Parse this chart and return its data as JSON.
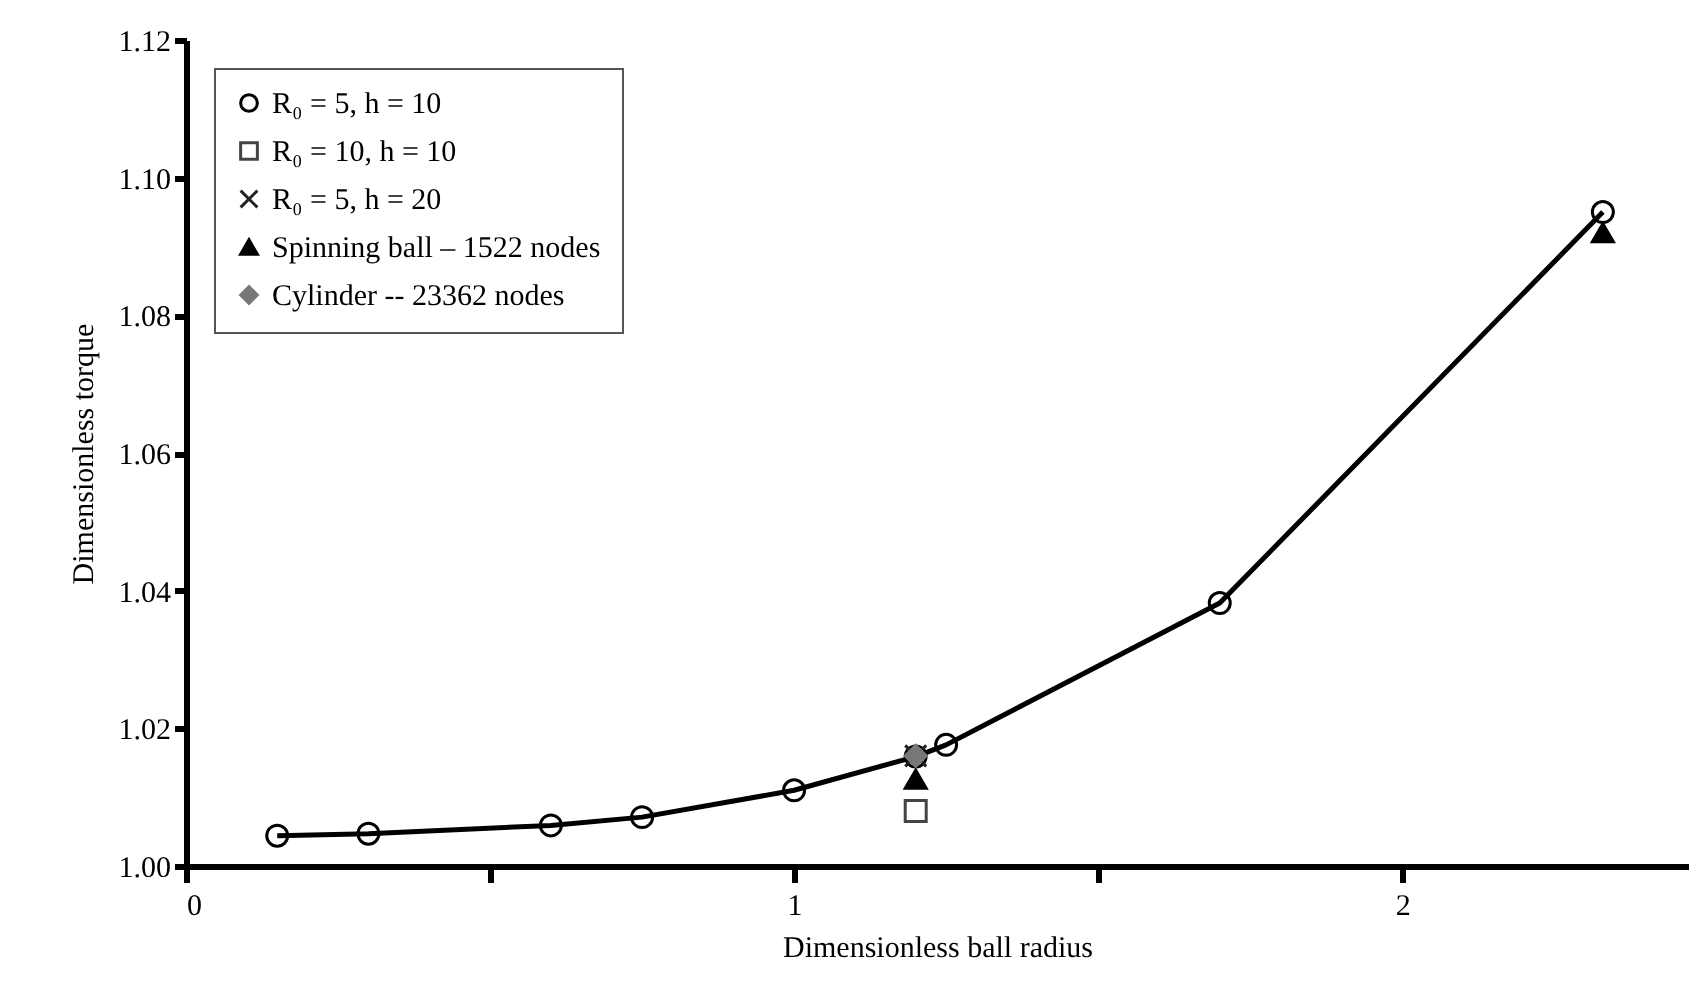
{
  "chart_data": {
    "type": "line",
    "xlabel": "Dimensionless ball radius",
    "ylabel": "Dimensionless torque",
    "xlim": [
      0,
      2.47
    ],
    "xticks": [
      0,
      {
        "value": 0.5,
        "label": null
      },
      1,
      {
        "value": 1.5,
        "label": null
      },
      2
    ],
    "ylim": [
      1.0,
      1.12
    ],
    "yticks": [
      {
        "value": 1.0,
        "label": "1.00"
      },
      {
        "value": 1.02,
        "label": "1.02"
      },
      {
        "value": 1.04,
        "label": "1.04"
      },
      {
        "value": 1.06,
        "label": "1.06"
      },
      {
        "value": 1.08,
        "label": "1.08"
      },
      {
        "value": 1.1,
        "label": "1.10"
      },
      {
        "value": 1.12,
        "label": "1.12"
      }
    ],
    "grid": false,
    "legend": "top left",
    "series": [
      {
        "name": "R₀ = 5, h = 10",
        "marker": "circle",
        "color": "#000000",
        "x": [
          0.15,
          0.3,
          0.6,
          0.75,
          1.0,
          1.2,
          1.25,
          1.7,
          2.33
        ],
        "values": [
          1.0044,
          1.0047,
          1.0059,
          1.0071,
          1.011,
          1.0159,
          1.0176,
          1.0382,
          1.095
        ]
      },
      {
        "name": "R₀ = 10, h = 10",
        "type": "scatter",
        "marker": "square",
        "color": "#444444",
        "x": [
          1.2
        ],
        "values": [
          1.008
        ]
      },
      {
        "name": "R₀ = 5, h = 20",
        "type": "scatter",
        "marker": "cross",
        "color": "#222222",
        "x": [
          1.2
        ],
        "values": [
          1.016
        ]
      },
      {
        "name": "Spinning ball – 1522 nodes",
        "type": "scatter",
        "marker": "triangle",
        "color": "#000000",
        "x": [
          1.2,
          2.33
        ],
        "values": [
          1.0126,
          1.092
        ]
      },
      {
        "name": "Cylinder -- 23362 nodes",
        "type": "scatter",
        "marker": "diamond",
        "color": "#777777",
        "x": [
          1.2
        ],
        "values": [
          1.016
        ]
      }
    ]
  }
}
